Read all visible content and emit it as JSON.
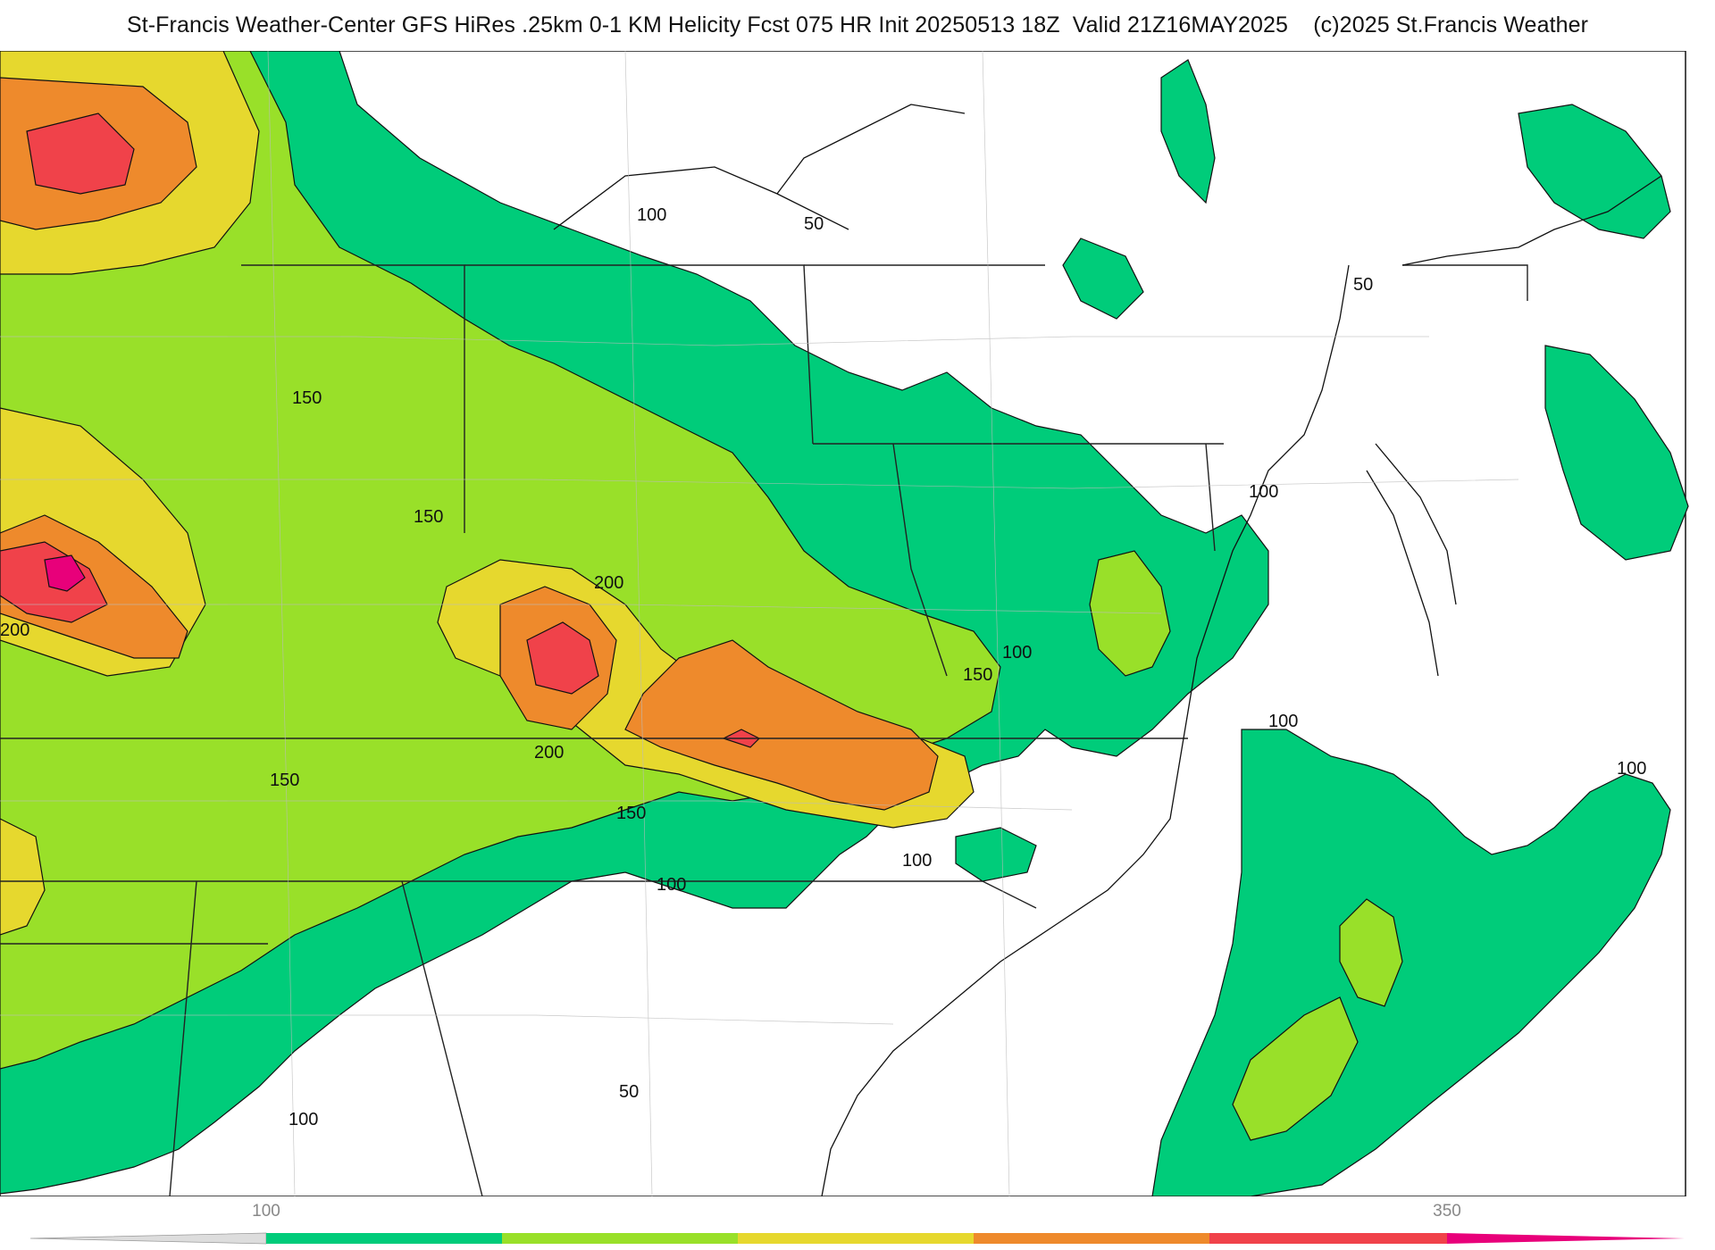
{
  "title": "St-Francis Weather-Center GFS HiRes .25km 0-1 KM Helicity Fcst 075 HR Init 20250513 18Z  Valid 21Z16MAY2025    (c)2025 St.Francis Weather",
  "colors": {
    "band_100": "#00cc7a",
    "band_150": "#99e029",
    "band_200": "#e6d82e",
    "band_250": "#ee8a2c",
    "band_300": "#f0424a",
    "band_350": "#e8007a",
    "outline": "#111111",
    "state_line": "#222222",
    "county_line": "#bbbbbb"
  },
  "contour_labels": [
    {
      "id": "l50a",
      "text": "50"
    },
    {
      "id": "l50b",
      "text": "50"
    },
    {
      "id": "l50c",
      "text": "50"
    },
    {
      "id": "l100a",
      "text": "100"
    },
    {
      "id": "l100b",
      "text": "100"
    },
    {
      "id": "l100c",
      "text": "100"
    },
    {
      "id": "l100d",
      "text": "100"
    },
    {
      "id": "l100e",
      "text": "100"
    },
    {
      "id": "l100f",
      "text": "100"
    },
    {
      "id": "l100g",
      "text": "100"
    },
    {
      "id": "l100h",
      "text": "100"
    },
    {
      "id": "l150a",
      "text": "150"
    },
    {
      "id": "l150b",
      "text": "150"
    },
    {
      "id": "l150c",
      "text": "150"
    },
    {
      "id": "l150d",
      "text": "150"
    },
    {
      "id": "l150e",
      "text": "150"
    },
    {
      "id": "l200a",
      "text": "200"
    },
    {
      "id": "l200b",
      "text": "200"
    },
    {
      "id": "l200c",
      "text": "200"
    }
  ],
  "scale": {
    "labels": [
      "100",
      "350"
    ],
    "bands": [
      "band_100",
      "band_150",
      "band_200",
      "band_250",
      "band_300",
      "band_350"
    ]
  }
}
